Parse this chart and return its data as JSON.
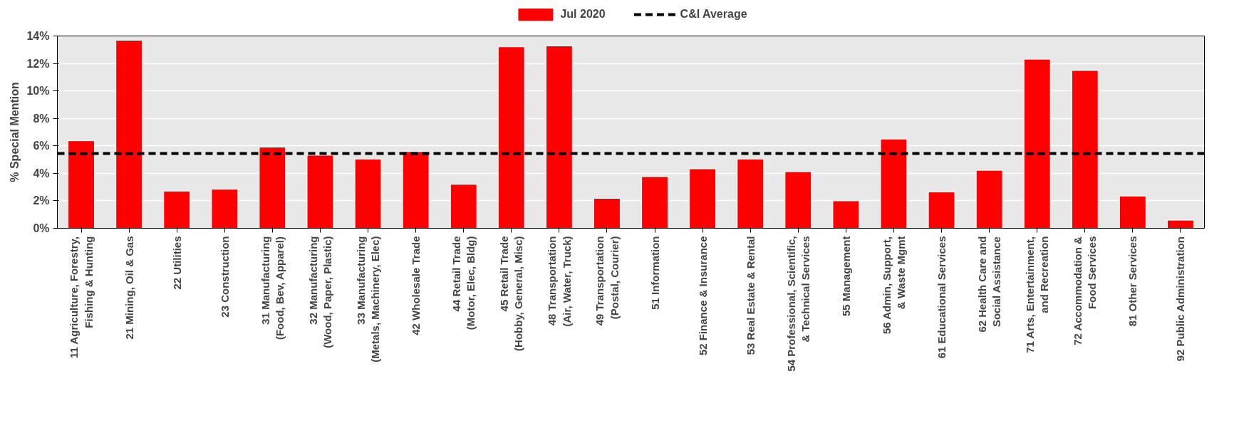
{
  "chart_data": {
    "type": "bar",
    "ylabel": "% Special Mention",
    "categories": [
      "11 Agriculture, Forestry,\nFishing & Hunting",
      "21 Mining, Oil & Gas",
      "22 Utilities",
      "23 Construction",
      "31 Manufacturing\n(Food, Bev, Apparel)",
      "32 Manufacturing\n(Wood, Paper, Plastic)",
      "33 Manufacturing\n(Metals, Machinery, Elec)",
      "42 Wholesale Trade",
      "44 Retail Trade\n(Motor, Elec, Bldg)",
      "45 Retail Trade\n(Hobby, General, Misc)",
      "48 Transportation\n(Air, Water, Truck)",
      "49 Transportation\n(Postal, Courier)",
      "51 Information",
      "52 Finance & Insurance",
      "53 Real Estate & Rental",
      "54 Professional, Scientific,\n& Technical Services",
      "55 Management",
      "56 Admin, Support,\n& Waste Mgmt",
      "61 Educational Services",
      "62 Health Care and\nSocial Assistance",
      "71 Arts, Entertainment,\nand Recreation",
      "72 Accommodation &\nFood Services",
      "81 Other Services",
      "92 Public Administration"
    ],
    "series": [
      {
        "name": "Jul 2020",
        "color": "#ff0000",
        "values": [
          6.37,
          13.69,
          2.71,
          2.84,
          5.91,
          5.32,
          5.04,
          5.58,
          3.2,
          13.21,
          13.28,
          2.18,
          3.76,
          4.33,
          5.04,
          4.12,
          2.0,
          6.5,
          2.64,
          4.22,
          12.31,
          11.49,
          2.35,
          0.59
        ]
      }
    ],
    "ref_lines": [
      {
        "axis": "y",
        "value": 5.45,
        "label": "C&I Average",
        "color": "#000000",
        "line_style": "dashed"
      }
    ],
    "ylim": [
      0,
      14
    ],
    "yticks": [
      {
        "value": 0,
        "label": "0%"
      },
      {
        "value": 2,
        "label": "2%"
      },
      {
        "value": 4,
        "label": "4%"
      },
      {
        "value": 6,
        "label": "6%"
      },
      {
        "value": 8,
        "label": "8%"
      },
      {
        "value": 10,
        "label": "10%"
      },
      {
        "value": 12,
        "label": "12%"
      },
      {
        "value": 14,
        "label": "14%"
      }
    ],
    "grid": "y",
    "legend": "top"
  }
}
